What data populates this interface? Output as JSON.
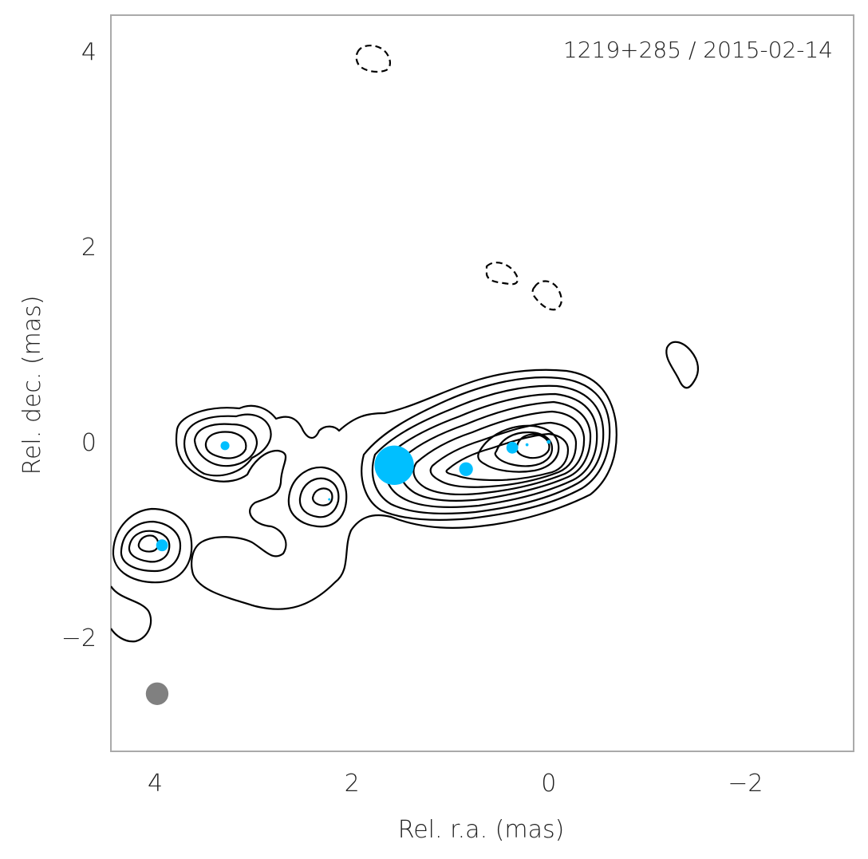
{
  "chart_data": {
    "type": "scatter",
    "title": "1219+285 / 2015-02-14",
    "xlabel": "Rel. r.a. (mas)",
    "ylabel": "Rel. dec. (mas)",
    "xlim": [
      4.45,
      -3.1
    ],
    "ylim": [
      -3.17,
      4.37
    ],
    "x_reversed": true,
    "xticks": [
      4,
      2,
      0,
      -2
    ],
    "xtick_labels": [
      "4",
      "2",
      "0",
      "−2"
    ],
    "yticks": [
      4,
      2,
      0,
      -2
    ],
    "ytick_labels": [
      "4",
      "2",
      "0",
      "−2"
    ],
    "grid": false,
    "colors": {
      "components": "#00BFFF",
      "beam": "#808080",
      "contours": "#000000",
      "frame": "#AAAAAA"
    },
    "series": [
      {
        "type": "components",
        "points": [
          {
            "x": 0.0,
            "y": 0.0,
            "size": 0.04
          },
          {
            "x": 0.22,
            "y": -0.03,
            "size": 0.03
          },
          {
            "x": 0.37,
            "y": -0.06,
            "size": 0.12
          },
          {
            "x": 0.84,
            "y": -0.28,
            "size": 0.14
          },
          {
            "x": 1.57,
            "y": -0.24,
            "size": 0.4
          },
          {
            "x": 2.23,
            "y": -0.59,
            "size": 0.01
          },
          {
            "x": 3.29,
            "y": -0.04,
            "size": 0.09
          },
          {
            "x": 3.93,
            "y": -1.06,
            "size": 0.12
          }
        ]
      },
      {
        "type": "beam",
        "x": 3.98,
        "y": -2.58,
        "size": 0.23
      }
    ]
  }
}
